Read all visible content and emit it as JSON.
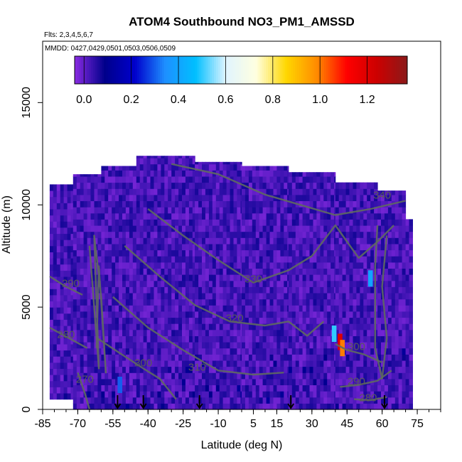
{
  "chart_data": {
    "type": "heatmap",
    "title": "ATOM4 Southbound NO3_PM1_AMSSD",
    "flights_label": "Flts: 2,3,4,5,6,7",
    "dates_label": "MMDD: 0427,0429,0501,0503,0506,0509",
    "xlabel": "Latitude (deg N)",
    "ylabel": "Altitude (m)",
    "xlim": [
      -85,
      85
    ],
    "ylim": [
      0,
      18000
    ],
    "x_ticks": [
      "-85",
      "-70",
      "-55",
      "-40",
      "-25",
      "-10",
      "5",
      "15",
      "30",
      "45",
      "60",
      "75"
    ],
    "x_tick_values": [
      -85,
      -70,
      -55,
      -40,
      -25,
      -10,
      5,
      15,
      30,
      45,
      60,
      75
    ],
    "y_ticks": [
      "0",
      "5000",
      "10000",
      "15000"
    ],
    "y_tick_values": [
      0,
      5000,
      10000,
      15000
    ],
    "colorbar": {
      "ticks": [
        "0.0",
        "0.2",
        "0.4",
        "0.6",
        "0.8",
        "1.0",
        "1.2"
      ],
      "tick_values": [
        0.0,
        0.2,
        0.4,
        0.6,
        0.8,
        1.0,
        1.2
      ],
      "range": [
        -0.04,
        1.37
      ],
      "colors": [
        "#8a2be2",
        "#00008b",
        "#0000cd",
        "#1e90ff",
        "#00bfff",
        "#e0f4ff",
        "#ffffe0",
        "#ffd700",
        "#ff8c00",
        "#ff0000",
        "#cc0000",
        "#8b1a1a"
      ]
    },
    "coverage": [
      {
        "lat_min": -82,
        "lat_max": -72,
        "alt_min": 500,
        "alt_max": 11000
      },
      {
        "lat_min": -72,
        "lat_max": -60,
        "alt_min": 0,
        "alt_max": 11500
      },
      {
        "lat_min": -60,
        "lat_max": -45,
        "alt_min": 0,
        "alt_max": 11900
      },
      {
        "lat_min": -45,
        "lat_max": -20,
        "alt_min": 0,
        "alt_max": 12400
      },
      {
        "lat_min": -20,
        "lat_max": 0,
        "alt_min": 0,
        "alt_max": 12100
      },
      {
        "lat_min": 0,
        "lat_max": 20,
        "alt_min": 0,
        "alt_max": 11900
      },
      {
        "lat_min": 20,
        "lat_max": 40,
        "alt_min": 0,
        "alt_max": 11600
      },
      {
        "lat_min": 40,
        "lat_max": 58,
        "alt_min": 0,
        "alt_max": 11100
      },
      {
        "lat_min": 58,
        "lat_max": 70,
        "alt_min": 0,
        "alt_max": 10700
      },
      {
        "lat_min": 70,
        "lat_max": 73,
        "alt_min": 0,
        "alt_max": 9300
      }
    ],
    "hotspots": [
      {
        "lat": 39.5,
        "alt": 3700,
        "value": 0.5
      },
      {
        "lat": 42,
        "alt": 3300,
        "value": 1.2
      },
      {
        "lat": 43,
        "alt": 3000,
        "value": 1.0
      },
      {
        "lat": 55,
        "alt": 6400,
        "value": 0.4
      },
      {
        "lat": -52,
        "alt": 1200,
        "value": 0.3
      }
    ],
    "contours": [
      {
        "label": "340",
        "label_lat": 60,
        "label_alt": 10300
      },
      {
        "label": "330",
        "label_lat": 5,
        "label_alt": 6200
      },
      {
        "label": "320",
        "label_lat": -3,
        "label_alt": 4300
      },
      {
        "label": "310",
        "label_lat": -19,
        "label_alt": 1900
      },
      {
        "label": "300",
        "label_lat": -42,
        "label_alt": 2100
      },
      {
        "label": "290",
        "label_lat": -73,
        "label_alt": 6000
      },
      {
        "label": "280",
        "label_lat": -75,
        "label_alt": 3500
      },
      {
        "label": "270",
        "label_lat": -67,
        "label_alt": 1300
      },
      {
        "label": "300",
        "label_lat": 49,
        "label_alt": 2900
      },
      {
        "label": "290",
        "label_lat": 49,
        "label_alt": 1200
      },
      {
        "label": "280",
        "label_lat": 54,
        "label_alt": 400
      }
    ],
    "arrow_latitudes": [
      -53,
      -42,
      -18,
      21,
      61
    ],
    "grid": false,
    "legend": "colorbar-top"
  }
}
